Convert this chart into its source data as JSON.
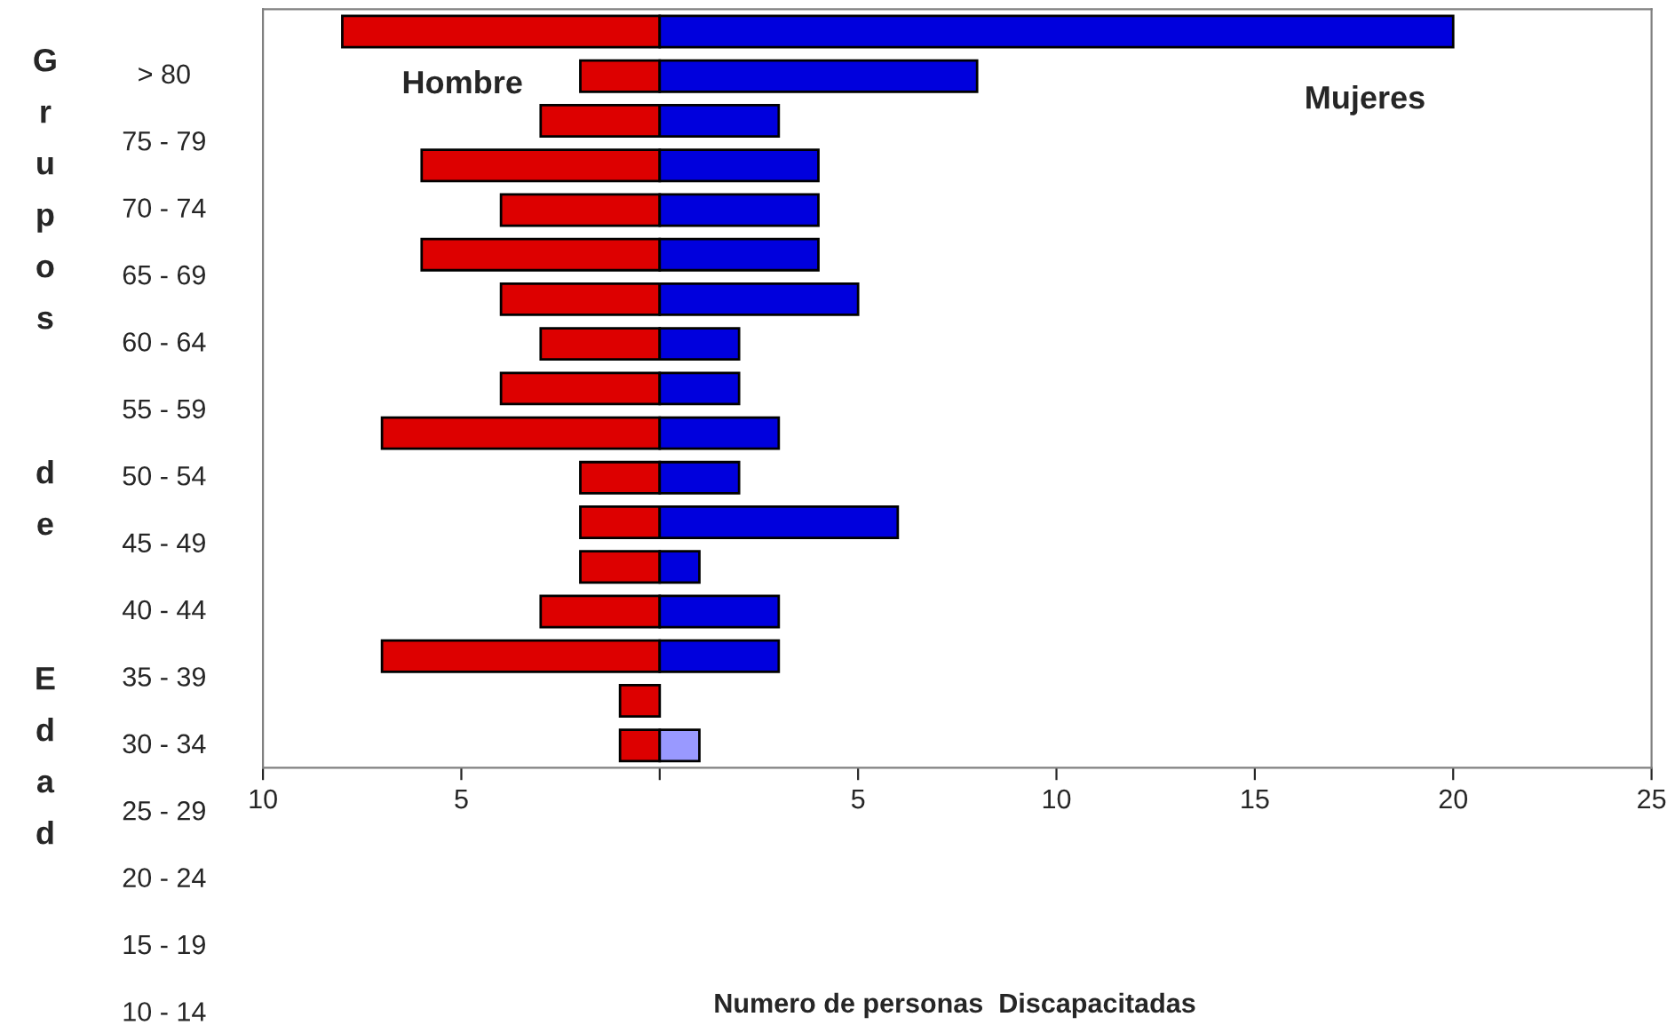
{
  "chart_data": {
    "type": "bar",
    "orientation": "horizontal",
    "stacked": true,
    "ylabel": "Grupos de Edad",
    "categories": [
      null,
      null,
      null,
      null,
      null,
      null,
      null,
      null,
      null,
      null,
      null,
      null,
      null,
      null,
      null,
      null,
      null
    ],
    "series": [
      {
        "name": "Hombre",
        "color": "#dd0000",
        "values": [
          -8,
          -2,
          -3,
          -6,
          -4,
          -6,
          -4,
          -3,
          -4,
          -7,
          -2,
          -2,
          -2,
          -3,
          -7,
          -1,
          -1
        ]
      },
      {
        "name": "Mujeres",
        "colors": [
          "#0000dd",
          "#0000dd",
          "#0000dd",
          "#0000dd",
          "#0000dd",
          "#0000dd",
          "#0000dd",
          "#0000dd",
          "#0000dd",
          "#0000dd",
          "#0000dd",
          "#0000dd",
          "#0000dd",
          "#0000dd",
          "#0000dd",
          "#0000dd",
          "#9999ff"
        ],
        "values": [
          20,
          8,
          3,
          4,
          4,
          4,
          5,
          2,
          2,
          3,
          2,
          6,
          1,
          3,
          3,
          null,
          1
        ]
      }
    ],
    "xlim": [
      -10,
      25
    ],
    "xticks": [
      {
        "value": -10,
        "label": "10"
      },
      {
        "value": -5,
        "label": "5"
      },
      {
        "value": 0,
        "label": null
      },
      5,
      10,
      15,
      20,
      25
    ],
    "annotations": [
      "Numero de personas  Discapacitadas",
      "> 80",
      "75 - 79",
      "70 - 74",
      "65 - 69",
      "60 - 64",
      "55 - 59",
      "50 - 54",
      "45 - 49",
      "40 - 44",
      "35 - 39",
      "30 - 34",
      "25 - 29",
      "20 - 24",
      "15 - 19",
      "10 - 14"
    ],
    "grid": false,
    "legend": false
  }
}
